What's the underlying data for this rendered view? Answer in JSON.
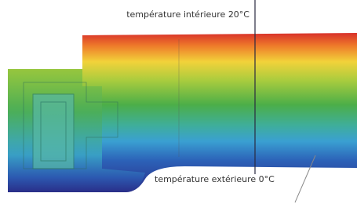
{
  "labels": {
    "interior": "température intérieure 20°C",
    "exterior": "température extérieure 0°C"
  }
}
